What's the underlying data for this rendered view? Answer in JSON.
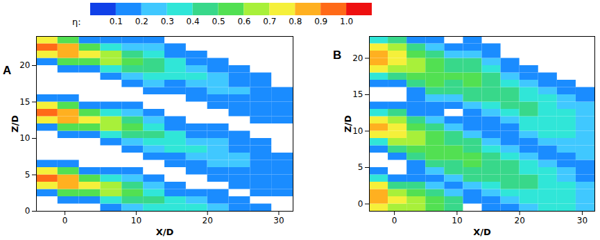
{
  "chart_data": [
    {
      "type": "heatmap",
      "title": "A",
      "xlabel": "X/D",
      "ylabel": "Z/D",
      "xlim": [
        -4,
        32
      ],
      "ylim": [
        0,
        24
      ],
      "xticks": [
        0,
        10,
        20,
        30
      ],
      "yticks": [
        0,
        5,
        10,
        15,
        20
      ],
      "x_bins": [
        -4,
        -1,
        2,
        5,
        8,
        11,
        14,
        17,
        20,
        23,
        26,
        29,
        32
      ],
      "z_bins": [
        0,
        1,
        2,
        3,
        4,
        5,
        6,
        7,
        8,
        9,
        10,
        11,
        12,
        13,
        14,
        15,
        16,
        17,
        18,
        19,
        20,
        21,
        22,
        23,
        24
      ],
      "eta": [
        [
          null,
          null,
          0.15,
          0.75,
          0.95,
          0.75,
          0.15,
          null,
          null,
          null,
          null,
          0.15,
          0.75,
          0.95,
          0.75,
          0.15,
          null,
          null,
          null,
          null,
          0.15,
          0.75,
          0.95,
          0.75
        ],
        [
          null,
          0.12,
          0.5,
          0.85,
          0.85,
          0.5,
          0.12,
          null,
          null,
          null,
          0.12,
          0.5,
          0.85,
          0.85,
          0.5,
          0.12,
          null,
          null,
          null,
          0.12,
          0.5,
          0.85,
          0.85,
          0.5
        ],
        [
          null,
          0.18,
          0.5,
          0.72,
          0.5,
          0.18,
          null,
          null,
          null,
          null,
          0.18,
          0.5,
          0.72,
          0.5,
          0.18,
          null,
          null,
          null,
          null,
          0.18,
          0.5,
          0.72,
          0.5,
          0.18
        ],
        [
          0.12,
          0.35,
          0.6,
          0.6,
          0.35,
          0.12,
          null,
          null,
          null,
          0.12,
          0.35,
          0.6,
          0.6,
          0.35,
          0.12,
          null,
          null,
          null,
          0.12,
          0.35,
          0.6,
          0.6,
          0.35,
          0.12
        ],
        [
          0.22,
          0.4,
          0.5,
          0.4,
          0.22,
          0.1,
          null,
          null,
          0.1,
          0.22,
          0.4,
          0.5,
          0.4,
          0.22,
          0.1,
          null,
          null,
          0.1,
          0.22,
          0.4,
          0.5,
          0.4,
          0.22,
          0.1
        ],
        [
          0.35,
          0.42,
          0.35,
          0.2,
          0.1,
          null,
          null,
          0.1,
          0.2,
          0.35,
          0.42,
          0.35,
          0.2,
          0.1,
          null,
          null,
          0.1,
          0.2,
          0.35,
          0.42,
          0.42,
          0.35,
          0.2,
          0.1
        ],
        [
          0.36,
          0.3,
          0.18,
          0.1,
          null,
          null,
          0.1,
          0.18,
          0.3,
          0.36,
          0.3,
          0.18,
          0.1,
          null,
          null,
          null,
          0.1,
          0.18,
          0.3,
          0.36,
          0.3,
          0.18,
          0.1,
          null
        ],
        [
          0.3,
          0.2,
          0.1,
          null,
          null,
          0.1,
          0.16,
          0.26,
          0.3,
          0.26,
          0.16,
          0.1,
          null,
          null,
          null,
          0.1,
          0.16,
          0.26,
          0.3,
          0.26,
          0.16,
          0.1,
          null,
          null
        ],
        [
          0.22,
          0.15,
          0.1,
          null,
          0.1,
          0.15,
          0.22,
          0.26,
          0.26,
          0.22,
          0.15,
          0.1,
          null,
          null,
          0.1,
          0.15,
          0.22,
          0.26,
          0.22,
          0.15,
          0.1,
          null,
          null,
          null
        ],
        [
          0.14,
          0.1,
          null,
          0.1,
          0.14,
          0.19,
          0.22,
          0.22,
          0.19,
          0.14,
          0.1,
          null,
          null,
          0.1,
          0.14,
          0.19,
          0.22,
          0.19,
          0.14,
          0.1,
          null,
          null,
          null,
          null
        ],
        [
          0.1,
          null,
          0.1,
          0.12,
          0.16,
          0.18,
          0.18,
          0.16,
          0.12,
          0.1,
          null,
          null,
          0.1,
          0.12,
          0.16,
          0.18,
          0.16,
          0.12,
          0.1,
          null,
          null,
          null,
          null,
          null
        ],
        [
          null,
          null,
          0.11,
          0.13,
          0.15,
          0.15,
          0.13,
          0.11,
          null,
          null,
          null,
          null,
          0.11,
          0.13,
          0.15,
          0.13,
          0.11,
          null,
          null,
          null,
          null,
          null,
          null,
          null
        ]
      ]
    },
    {
      "type": "heatmap",
      "title": "B",
      "xlabel": "X/D",
      "ylabel": "Z/D",
      "xlim": [
        -4,
        32
      ],
      "ylim": [
        -1,
        23
      ],
      "xticks": [
        0,
        10,
        20,
        30
      ],
      "yticks": [
        0,
        5,
        10,
        15,
        20
      ],
      "x_bins": [
        -4,
        -1,
        2,
        5,
        8,
        11,
        14,
        17,
        20,
        23,
        26,
        29,
        32
      ],
      "z_bins": [
        -1,
        0,
        1,
        2,
        3,
        4,
        5,
        6,
        7,
        8,
        9,
        10,
        11,
        12,
        13,
        14,
        15,
        16,
        17,
        18,
        19,
        20,
        21,
        22,
        23
      ],
      "eta": [
        [
          0.7,
          0.8,
          0.8,
          0.7,
          0.3,
          0.1,
          null,
          null,
          0.1,
          0.3,
          0.7,
          0.8,
          0.7,
          0.3,
          0.1,
          null,
          null,
          0.1,
          0.3,
          0.7,
          0.8,
          0.8,
          0.7,
          0.3
        ],
        [
          0.65,
          0.7,
          0.65,
          0.4,
          0.12,
          null,
          null,
          0.12,
          0.4,
          0.65,
          0.7,
          0.7,
          0.65,
          0.4,
          0.12,
          null,
          null,
          0.12,
          0.4,
          0.65,
          0.7,
          0.7,
          0.65,
          0.4
        ],
        [
          0.6,
          0.6,
          0.55,
          0.4,
          0.15,
          0.1,
          0.15,
          0.4,
          0.55,
          0.6,
          0.6,
          0.55,
          0.4,
          0.15,
          0.1,
          0.1,
          0.15,
          0.4,
          0.55,
          0.6,
          0.6,
          0.55,
          0.4,
          0.15
        ],
        [
          0.55,
          0.5,
          0.4,
          0.2,
          0.1,
          0.2,
          0.4,
          0.5,
          0.55,
          0.55,
          0.5,
          0.4,
          0.2,
          0.1,
          0.1,
          0.2,
          0.4,
          0.5,
          0.55,
          0.55,
          0.5,
          0.4,
          0.2,
          0.1
        ],
        [
          0.48,
          0.4,
          0.25,
          0.12,
          0.25,
          0.4,
          0.48,
          0.52,
          0.52,
          0.48,
          0.4,
          0.25,
          0.12,
          null,
          0.12,
          0.25,
          0.4,
          0.48,
          0.52,
          0.48,
          0.4,
          0.25,
          0.12,
          null
        ],
        [
          null,
          0.1,
          0.15,
          0.28,
          0.4,
          0.47,
          0.5,
          0.5,
          0.47,
          0.4,
          0.28,
          0.15,
          0.1,
          0.15,
          0.28,
          0.4,
          0.47,
          0.5,
          0.5,
          0.47,
          0.4,
          0.28,
          0.15,
          0.1
        ],
        [
          0.1,
          0.17,
          0.28,
          0.38,
          0.44,
          0.47,
          0.47,
          0.44,
          0.38,
          0.28,
          0.17,
          0.1,
          0.17,
          0.28,
          0.38,
          0.44,
          0.47,
          0.47,
          0.44,
          0.38,
          0.28,
          0.17,
          0.1,
          null
        ],
        [
          0.18,
          0.28,
          0.36,
          0.41,
          0.43,
          0.43,
          0.41,
          0.36,
          0.28,
          0.18,
          0.11,
          0.18,
          0.28,
          0.36,
          0.41,
          0.43,
          0.41,
          0.36,
          0.28,
          0.18,
          0.11,
          null,
          null,
          null
        ],
        [
          0.27,
          0.34,
          0.38,
          0.4,
          0.4,
          0.38,
          0.34,
          0.27,
          0.18,
          0.18,
          0.27,
          0.34,
          0.38,
          0.4,
          0.4,
          0.38,
          0.34,
          0.27,
          0.18,
          0.12,
          null,
          null,
          null,
          null
        ],
        [
          0.31,
          0.34,
          0.36,
          0.36,
          0.34,
          0.31,
          0.25,
          0.18,
          0.18,
          0.25,
          0.31,
          0.34,
          0.36,
          0.36,
          0.34,
          0.31,
          0.25,
          0.18,
          0.12,
          null,
          null,
          null,
          null,
          null
        ],
        [
          0.3,
          0.32,
          0.32,
          0.3,
          0.28,
          0.23,
          0.17,
          0.17,
          0.23,
          0.28,
          0.3,
          0.32,
          0.32,
          0.3,
          0.28,
          0.23,
          0.17,
          0.12,
          null,
          null,
          null,
          null,
          null,
          null
        ],
        [
          0.28,
          0.27,
          0.25,
          0.21,
          0.16,
          0.11,
          0.16,
          0.21,
          0.25,
          0.27,
          0.28,
          0.28,
          0.27,
          0.25,
          0.21,
          0.16,
          0.11,
          null,
          null,
          null,
          null,
          null,
          null,
          null
        ]
      ]
    }
  ],
  "color_bar": {
    "label": "η:",
    "lim": [
      0,
      1.1
    ],
    "ticks": [
      0.1,
      0.2,
      0.3,
      0.4,
      0.5,
      0.6,
      0.7,
      0.8,
      0.9,
      1
    ],
    "colors": [
      "#1040e8",
      "#1a8cff",
      "#40c8ff",
      "#30e6d8",
      "#38d88a",
      "#52e052",
      "#a8f03a",
      "#f5f03a",
      "#ffb020",
      "#ff6a18",
      "#ee1010"
    ]
  }
}
